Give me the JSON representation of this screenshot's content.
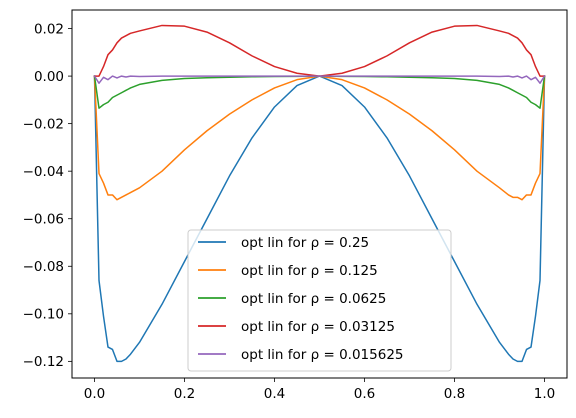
{
  "chart_data": {
    "type": "line",
    "title": "",
    "xlabel": "",
    "ylabel": "",
    "xlim": [
      -0.05,
      1.05
    ],
    "ylim": [
      -0.127,
      0.0278
    ],
    "grid": false,
    "legend_location": "lower-center",
    "x_ticks": [
      0.0,
      0.2,
      0.4,
      0.6,
      0.8,
      1.0
    ],
    "x_tick_labels": [
      "0.0",
      "0.2",
      "0.4",
      "0.6",
      "0.8",
      "1.0"
    ],
    "y_ticks": [
      -0.12,
      -0.1,
      -0.08,
      -0.06,
      -0.04,
      -0.02,
      0.0,
      0.02
    ],
    "y_tick_labels": [
      "−0.12",
      "−0.10",
      "−0.08",
      "−0.06",
      "−0.04",
      "−0.02",
      "0.00",
      "0.02"
    ],
    "x": [
      0.0,
      0.01,
      0.02,
      0.03,
      0.04,
      0.05,
      0.06,
      0.07,
      0.08,
      0.1,
      0.15,
      0.2,
      0.25,
      0.3,
      0.35,
      0.4,
      0.45,
      0.5,
      0.55,
      0.6,
      0.65,
      0.7,
      0.75,
      0.8,
      0.85,
      0.9,
      0.92,
      0.93,
      0.94,
      0.95,
      0.96,
      0.97,
      0.98,
      0.99,
      1.0
    ],
    "series": [
      {
        "name": "opt lin for ρ = 0.25",
        "color": "#1f77b4",
        "values": [
          0.0,
          -0.086,
          -0.101,
          -0.114,
          -0.115,
          -0.12,
          -0.12,
          -0.119,
          -0.117,
          -0.112,
          -0.096,
          -0.078,
          -0.06,
          -0.042,
          -0.026,
          -0.013,
          -0.004,
          0.0,
          -0.004,
          -0.013,
          -0.026,
          -0.042,
          -0.06,
          -0.078,
          -0.096,
          -0.112,
          -0.117,
          -0.119,
          -0.12,
          -0.12,
          -0.115,
          -0.114,
          -0.101,
          -0.086,
          0.0
        ]
      },
      {
        "name": "opt lin for ρ = 0.125",
        "color": "#ff7f0e",
        "values": [
          0.0,
          -0.041,
          -0.045,
          -0.05,
          -0.05,
          -0.052,
          -0.051,
          -0.05,
          -0.049,
          -0.047,
          -0.04,
          -0.031,
          -0.023,
          -0.016,
          -0.01,
          -0.005,
          -0.0015,
          0.0,
          -0.0015,
          -0.005,
          -0.01,
          -0.016,
          -0.023,
          -0.031,
          -0.04,
          -0.047,
          -0.05,
          -0.051,
          -0.051,
          -0.052,
          -0.05,
          -0.05,
          -0.045,
          -0.041,
          0.0
        ]
      },
      {
        "name": "opt lin for ρ = 0.0625",
        "color": "#2ca02c",
        "values": [
          0.0,
          -0.0135,
          -0.012,
          -0.011,
          -0.009,
          -0.008,
          -0.007,
          -0.006,
          -0.005,
          -0.0035,
          -0.0018,
          -0.001,
          -0.0007,
          -0.0005,
          -0.0003,
          -0.0002,
          -0.0001,
          0.0,
          -0.0001,
          -0.0002,
          -0.0003,
          -0.0005,
          -0.0007,
          -0.001,
          -0.0018,
          -0.0035,
          -0.005,
          -0.006,
          -0.007,
          -0.008,
          -0.009,
          -0.011,
          -0.012,
          -0.0135,
          0.0
        ]
      },
      {
        "name": "opt lin for ρ = 0.03125",
        "color": "#d62728",
        "values": [
          0.0,
          0.0,
          0.004,
          0.009,
          0.011,
          0.014,
          0.016,
          0.017,
          0.018,
          0.019,
          0.0213,
          0.021,
          0.0185,
          0.014,
          0.0085,
          0.004,
          0.0012,
          0.0,
          0.0012,
          0.004,
          0.0085,
          0.014,
          0.0185,
          0.021,
          0.0213,
          0.019,
          0.018,
          0.017,
          0.016,
          0.014,
          0.011,
          0.009,
          0.004,
          0.0,
          0.0
        ]
      },
      {
        "name": "opt lin for ρ = 0.015625",
        "color": "#9467bd",
        "values": [
          0.0,
          -0.003,
          -0.0005,
          -0.0015,
          0.0,
          -0.0008,
          0.0,
          -0.0004,
          0.0,
          -0.0002,
          0.0,
          0.0,
          0.0,
          0.0,
          0.0,
          0.0,
          0.0,
          0.0,
          0.0,
          0.0,
          0.0,
          0.0,
          0.0,
          0.0,
          0.0,
          -0.0002,
          0.0,
          -0.0004,
          0.0,
          -0.0008,
          0.0,
          -0.0015,
          -0.0005,
          -0.003,
          0.0
        ]
      }
    ]
  }
}
